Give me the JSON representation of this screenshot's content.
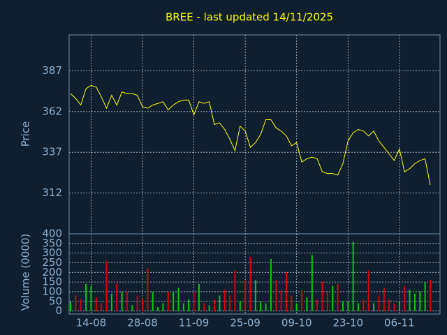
{
  "chart_data": [
    {
      "type": "line",
      "title": "BREE - last updated 14/11/2025",
      "y_label": "Price",
      "ylim": [
        287,
        409
      ],
      "yticks": [
        312,
        337,
        362,
        387
      ],
      "color": "#ffff00",
      "grid": true,
      "values": [
        373,
        370,
        366,
        376,
        378,
        377,
        371,
        364,
        372,
        366,
        374,
        373,
        373,
        372,
        365,
        364,
        366,
        367,
        368,
        363,
        366,
        368,
        369,
        369,
        360,
        368,
        367,
        368,
        354,
        355,
        351,
        345,
        338,
        353,
        350,
        340,
        343,
        348,
        357,
        357,
        352,
        350,
        347,
        341,
        343,
        331,
        333,
        334,
        333,
        325,
        324,
        324,
        323,
        330,
        344,
        349,
        351,
        350,
        347,
        350,
        344,
        340,
        336,
        332,
        339,
        325,
        327,
        330,
        332,
        333,
        317
      ]
    },
    {
      "type": "bar",
      "y_label": "Volume (0000)",
      "ylim": [
        -16,
        400
      ],
      "yticks": [
        0,
        50,
        100,
        150,
        200,
        250,
        300,
        350,
        400
      ],
      "up_color": "#00cc00",
      "down_color": "#dd0000",
      "grid": true,
      "categories": [
        null,
        null,
        null,
        null,
        "14-08",
        null,
        null,
        null,
        null,
        null,
        null,
        null,
        null,
        null,
        "28-08",
        null,
        null,
        null,
        null,
        null,
        null,
        null,
        null,
        null,
        "11-09",
        null,
        null,
        null,
        null,
        null,
        null,
        null,
        null,
        null,
        "25-09",
        null,
        null,
        null,
        null,
        null,
        null,
        null,
        null,
        null,
        "09-10",
        null,
        null,
        null,
        null,
        null,
        null,
        null,
        null,
        null,
        "23-10",
        null,
        null,
        null,
        null,
        null,
        null,
        null,
        null,
        null,
        "06-11",
        null,
        null,
        null,
        null,
        null,
        null
      ],
      "values": [
        50,
        80,
        60,
        140,
        130,
        70,
        40,
        260,
        90,
        140,
        100,
        100,
        30,
        80,
        65,
        220,
        100,
        20,
        40,
        100,
        100,
        120,
        40,
        60,
        100,
        140,
        40,
        30,
        60,
        80,
        110,
        80,
        210,
        50,
        160,
        280,
        160,
        50,
        40,
        270,
        160,
        110,
        200,
        80,
        40,
        110,
        70,
        290,
        60,
        150,
        100,
        130,
        140,
        50,
        50,
        360,
        40,
        60,
        210,
        40,
        80,
        120,
        60,
        40,
        50,
        130,
        110,
        90,
        100,
        150,
        160
      ]
    }
  ]
}
